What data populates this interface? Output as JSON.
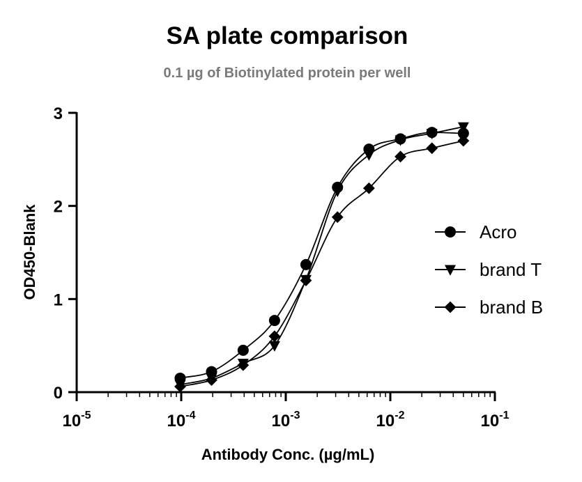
{
  "chart_data": {
    "type": "scatter",
    "title": "SA plate comparison",
    "subtitle": "0.1 µg of Biotinylated protein per well",
    "xlabel": "Antibody Conc. (µg/mL)",
    "ylabel": "OD450-Blank",
    "xscale": "log",
    "xlim": [
      1e-05,
      0.1
    ],
    "ylim": [
      0,
      3
    ],
    "x_ticks": [
      {
        "value": 1e-05,
        "base": "10",
        "exp": "-5"
      },
      {
        "value": 0.0001,
        "base": "10",
        "exp": "-4"
      },
      {
        "value": 0.001,
        "base": "10",
        "exp": "-3"
      },
      {
        "value": 0.01,
        "base": "10",
        "exp": "-2"
      },
      {
        "value": 0.1,
        "base": "10",
        "exp": "-1"
      }
    ],
    "y_ticks": [
      0,
      1,
      2,
      3
    ],
    "grid": false,
    "legend_position": "right",
    "series": [
      {
        "name": "Acro",
        "marker": "circle",
        "color": "#000000",
        "x": [
          9.77e-05,
          0.000195,
          0.000391,
          0.000781,
          0.00156,
          0.003125,
          0.00625,
          0.0125,
          0.025,
          0.05
        ],
        "y": [
          0.15,
          0.22,
          0.45,
          0.77,
          1.37,
          2.2,
          2.61,
          2.72,
          2.79,
          2.78
        ]
      },
      {
        "name": "brand T",
        "marker": "triangle-down",
        "color": "#000000",
        "x": [
          9.77e-05,
          0.000195,
          0.000391,
          0.000781,
          0.00156,
          0.003125,
          0.00625,
          0.0125,
          0.025,
          0.05
        ],
        "y": [
          0.08,
          0.15,
          0.31,
          0.5,
          1.21,
          2.16,
          2.55,
          2.71,
          2.78,
          2.85
        ]
      },
      {
        "name": "brand B",
        "marker": "diamond",
        "color": "#000000",
        "x": [
          9.77e-05,
          0.000195,
          0.000391,
          0.000781,
          0.00156,
          0.003125,
          0.00625,
          0.0125,
          0.025,
          0.05
        ],
        "y": [
          0.06,
          0.13,
          0.29,
          0.6,
          1.2,
          1.88,
          2.19,
          2.53,
          2.62,
          2.7
        ]
      }
    ]
  }
}
